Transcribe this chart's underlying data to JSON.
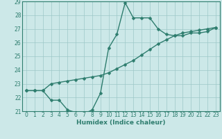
{
  "xlabel": "Humidex (Indice chaleur)",
  "x": [
    0,
    1,
    2,
    3,
    4,
    5,
    6,
    7,
    8,
    9,
    10,
    11,
    12,
    13,
    14,
    15,
    16,
    17,
    18,
    19,
    20,
    21,
    22,
    23
  ],
  "line1_y": [
    22.5,
    22.5,
    22.5,
    21.8,
    21.8,
    21.1,
    20.9,
    20.8,
    21.1,
    22.3,
    25.6,
    26.6,
    28.9,
    27.8,
    27.8,
    27.8,
    27.0,
    26.6,
    26.5,
    26.5,
    26.7,
    26.7,
    26.8,
    27.1
  ],
  "line2_y": [
    22.5,
    22.5,
    22.5,
    23.0,
    23.1,
    23.2,
    23.3,
    23.4,
    23.5,
    23.6,
    23.8,
    24.1,
    24.4,
    24.7,
    25.1,
    25.5,
    25.9,
    26.2,
    26.5,
    26.7,
    26.8,
    26.9,
    27.0,
    27.1
  ],
  "line_color": "#2e7d6e",
  "bg_color": "#cce8e8",
  "grid_color": "#9dc8c8",
  "ylim": [
    21,
    29
  ],
  "xlim": [
    -0.5,
    23.5
  ],
  "yticks": [
    21,
    22,
    23,
    24,
    25,
    26,
    27,
    28,
    29
  ],
  "xticks": [
    0,
    1,
    2,
    3,
    4,
    5,
    6,
    7,
    8,
    9,
    10,
    11,
    12,
    13,
    14,
    15,
    16,
    17,
    18,
    19,
    20,
    21,
    22,
    23
  ],
  "marker": "D",
  "markersize": 2.5,
  "linewidth": 1.0,
  "tick_fontsize": 5.5,
  "xlabel_fontsize": 6.5
}
